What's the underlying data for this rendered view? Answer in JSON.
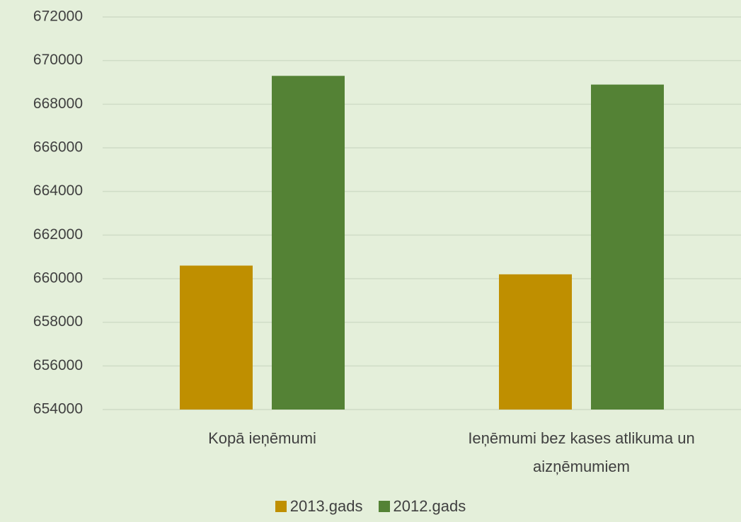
{
  "chart_data": {
    "type": "bar",
    "categories": [
      "Kopā ieņēmumi",
      "Ieņēmumi bez kases atlikuma un aizņēmumiem"
    ],
    "series": [
      {
        "name": "2013.gads",
        "color": "#bf8f00",
        "values": [
          660600,
          660200
        ]
      },
      {
        "name": "2012.gads",
        "color": "#548235",
        "values": [
          669300,
          668900
        ]
      }
    ],
    "ylim": [
      654000,
      672000
    ],
    "yticks": [
      654000,
      656000,
      658000,
      660000,
      662000,
      664000,
      666000,
      668000,
      670000,
      672000
    ],
    "grid": true,
    "legend": "bottom"
  }
}
